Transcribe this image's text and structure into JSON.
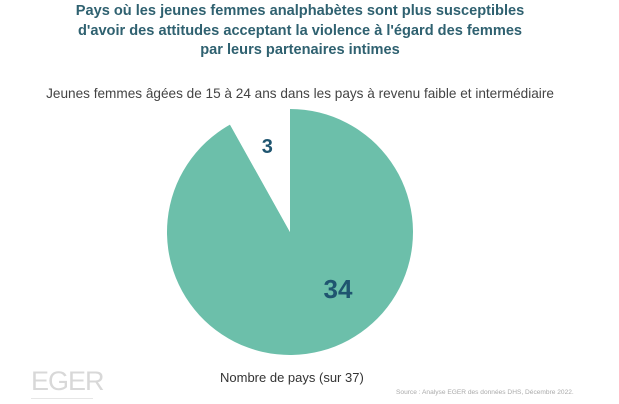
{
  "chart_data": {
    "type": "pie",
    "title": "Pays où les jeunes femmes analphabètes sont plus susceptibles d'avoir des attitudes acceptant la violence à l'égard des femmes par leurs partenaires intimes",
    "title_lines": [
      "Pays où les jeunes femmes analphabètes sont plus susceptibles",
      "d'avoir des attitudes acceptant la violence à l'égard des femmes",
      "par leurs partenaires intimes"
    ],
    "subtitle": "Jeunes femmes âgées de 15 à 24 ans dans les pays à revenu faible et intermédiaire",
    "xlabel": "Nombre de pays (sur 37)",
    "slices": [
      {
        "label": "34",
        "value": 34,
        "color": "#6cbfaa"
      },
      {
        "label": "3",
        "value": 3,
        "color": "#ffffff"
      }
    ],
    "label_color": "#1f5570"
  },
  "source": "Source : Analyse EGER des données DHS, Décembre 2022.",
  "logo": "EGER"
}
